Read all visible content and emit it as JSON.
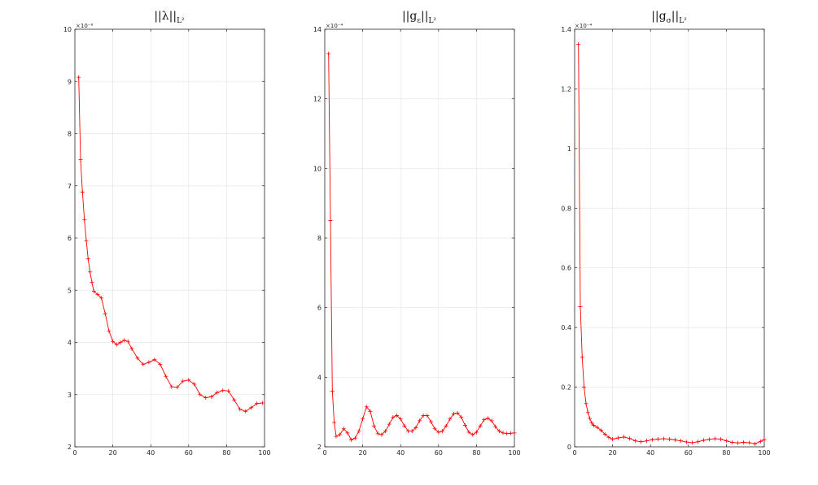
{
  "figure_background": "#ffffff",
  "series_color": "#ff0000",
  "grid_color": "#e6e6e6",
  "chart_data": [
    {
      "type": "line",
      "title": "||λ||",
      "title_sub": "L²",
      "marker": "+",
      "exponent_label": "×10⁻⁶",
      "xlim": [
        0,
        100
      ],
      "ylim": [
        2,
        10
      ],
      "xticks": [
        0,
        20,
        40,
        60,
        80,
        100
      ],
      "xtick_labels": [
        "0",
        "20",
        "40",
        "60",
        "80",
        "100"
      ],
      "yticks": [
        2,
        3,
        4,
        5,
        6,
        7,
        8,
        9,
        10
      ],
      "ytick_labels": [
        "2",
        "3",
        "4",
        "5",
        "6",
        "7",
        "8",
        "9",
        "10"
      ],
      "grid": true,
      "x": [
        2,
        3,
        4,
        5,
        6,
        7,
        8,
        9,
        10,
        12,
        14,
        16,
        18,
        20,
        22,
        24,
        26,
        28,
        30,
        33,
        36,
        39,
        42,
        45,
        48,
        51,
        54,
        57,
        60,
        63,
        66,
        69,
        72,
        75,
        78,
        81,
        84,
        87,
        90,
        93,
        96,
        99
      ],
      "y": [
        9.08,
        7.5,
        6.88,
        6.35,
        5.95,
        5.6,
        5.35,
        5.15,
        4.98,
        4.92,
        4.85,
        4.55,
        4.22,
        4.02,
        3.96,
        4.0,
        4.04,
        4.02,
        3.88,
        3.7,
        3.58,
        3.62,
        3.67,
        3.58,
        3.35,
        3.15,
        3.14,
        3.26,
        3.28,
        3.2,
        3.0,
        2.94,
        2.96,
        3.04,
        3.08,
        3.07,
        2.9,
        2.72,
        2.68,
        2.75,
        2.83,
        2.84
      ]
    },
    {
      "type": "line",
      "title": "||g",
      "title_sub_symbol": "ε",
      "title_tail": "||",
      "title_sub": "L²",
      "marker": "+",
      "exponent_label": "×10⁻⁴",
      "xlim": [
        0,
        100
      ],
      "ylim": [
        2,
        14
      ],
      "xticks": [
        0,
        20,
        40,
        60,
        80,
        100
      ],
      "xtick_labels": [
        "0",
        "20",
        "40",
        "60",
        "80",
        "100"
      ],
      "yticks": [
        2,
        4,
        6,
        8,
        10,
        12,
        14
      ],
      "ytick_labels": [
        "2",
        "4",
        "6",
        "8",
        "10",
        "12",
        "14"
      ],
      "grid": true,
      "x": [
        2,
        3,
        4,
        5,
        6,
        8,
        10,
        12,
        14,
        16,
        18,
        20,
        22,
        24,
        26,
        28,
        30,
        32,
        34,
        36,
        38,
        40,
        42,
        44,
        46,
        48,
        50,
        52,
        54,
        56,
        58,
        60,
        62,
        64,
        66,
        68,
        70,
        72,
        74,
        76,
        78,
        80,
        82,
        84,
        86,
        88,
        90,
        92,
        94,
        96,
        98,
        100
      ],
      "y": [
        13.3,
        8.5,
        3.6,
        2.7,
        2.3,
        2.35,
        2.52,
        2.4,
        2.2,
        2.25,
        2.45,
        2.8,
        3.15,
        3.02,
        2.6,
        2.38,
        2.35,
        2.45,
        2.65,
        2.85,
        2.9,
        2.8,
        2.6,
        2.45,
        2.45,
        2.55,
        2.75,
        2.9,
        2.9,
        2.72,
        2.52,
        2.42,
        2.45,
        2.6,
        2.8,
        2.95,
        2.97,
        2.85,
        2.62,
        2.42,
        2.35,
        2.42,
        2.6,
        2.78,
        2.82,
        2.75,
        2.58,
        2.45,
        2.4,
        2.38,
        2.39,
        2.4
      ]
    },
    {
      "type": "line",
      "title": "||g",
      "title_sub_symbol": "σ",
      "title_tail": "||",
      "title_sub": "L²",
      "marker": "+",
      "exponent_label": "×10⁻⁴",
      "xlim": [
        0,
        100
      ],
      "ylim": [
        0,
        1.4
      ],
      "xticks": [
        0,
        20,
        40,
        60,
        80,
        100
      ],
      "xtick_labels": [
        "0",
        "20",
        "40",
        "60",
        "80",
        "100"
      ],
      "yticks": [
        0,
        0.2,
        0.4,
        0.6,
        0.8,
        1,
        1.2,
        1.4
      ],
      "ytick_labels": [
        "0",
        "0.2",
        "0.4",
        "0.6",
        "0.8",
        "1",
        "1.2",
        "1.4"
      ],
      "grid": true,
      "x": [
        2,
        3,
        4,
        5,
        6,
        7,
        8,
        9,
        10,
        12,
        14,
        16,
        18,
        20,
        23,
        26,
        29,
        32,
        35,
        38,
        41,
        44,
        47,
        50,
        53,
        56,
        59,
        62,
        65,
        68,
        71,
        74,
        77,
        80,
        83,
        86,
        89,
        92,
        95,
        98,
        100
      ],
      "y": [
        1.35,
        0.47,
        0.3,
        0.2,
        0.145,
        0.115,
        0.095,
        0.08,
        0.072,
        0.065,
        0.055,
        0.042,
        0.032,
        0.026,
        0.03,
        0.033,
        0.028,
        0.02,
        0.017,
        0.02,
        0.024,
        0.026,
        0.027,
        0.026,
        0.023,
        0.02,
        0.016,
        0.014,
        0.017,
        0.022,
        0.025,
        0.027,
        0.026,
        0.02,
        0.015,
        0.013,
        0.015,
        0.014,
        0.01,
        0.018,
        0.024
      ]
    }
  ]
}
